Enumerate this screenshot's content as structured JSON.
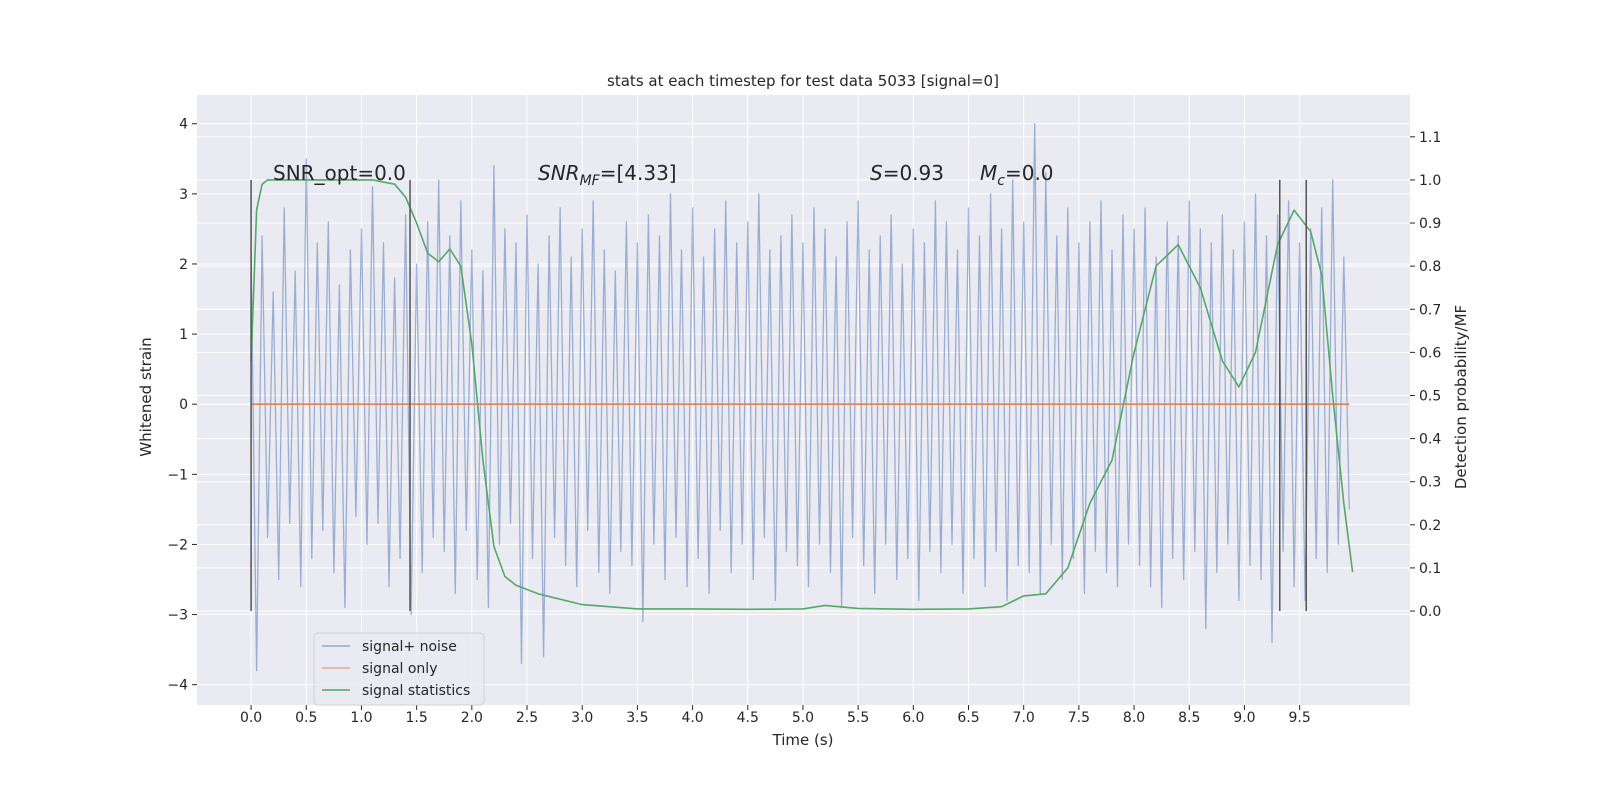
{
  "chart_data": {
    "type": "line",
    "title": "stats at each timestep for test data 5033 [signal=0]",
    "xlabel": "Time (s)",
    "ylabel": "Whitened strain",
    "y2label": "Detection probability/MF",
    "xlim": [
      -0.49,
      10.5
    ],
    "ylim": [
      -4.29,
      4.41
    ],
    "y2lim": [
      -0.218,
      1.197
    ],
    "xticks": [
      {
        "value": 0,
        "label": "0.0"
      },
      {
        "value": 0.5,
        "label": "0.5"
      },
      {
        "value": 1,
        "label": "1.0"
      },
      {
        "value": 1.5,
        "label": "1.5"
      },
      {
        "value": 2,
        "label": "2.0"
      },
      {
        "value": 2.5,
        "label": "2.5"
      },
      {
        "value": 3,
        "label": "3.0"
      },
      {
        "value": 3.5,
        "label": "3.5"
      },
      {
        "value": 4,
        "label": "4.0"
      },
      {
        "value": 4.5,
        "label": "4.5"
      },
      {
        "value": 5,
        "label": "5.0"
      },
      {
        "value": 5.5,
        "label": "5.5"
      },
      {
        "value": 6,
        "label": "6.0"
      },
      {
        "value": 6.5,
        "label": "6.5"
      },
      {
        "value": 7,
        "label": "7.0"
      },
      {
        "value": 7.5,
        "label": "7.5"
      },
      {
        "value": 8,
        "label": "8.0"
      },
      {
        "value": 8.5,
        "label": "8.5"
      },
      {
        "value": 9,
        "label": "9.0"
      },
      {
        "value": 9.5,
        "label": "9.5"
      }
    ],
    "yticks": [
      {
        "value": -4,
        "label": "−4"
      },
      {
        "value": -3,
        "label": "−3"
      },
      {
        "value": -2,
        "label": "−2"
      },
      {
        "value": -1,
        "label": "−1"
      },
      0,
      1,
      2,
      3,
      4
    ],
    "y2ticks": [
      {
        "value": 0,
        "label": "0.0"
      },
      {
        "value": 0.1,
        "label": "0.1"
      },
      {
        "value": 0.2,
        "label": "0.2"
      },
      {
        "value": 0.3,
        "label": "0.3"
      },
      {
        "value": 0.4,
        "label": "0.4"
      },
      {
        "value": 0.5,
        "label": "0.5"
      },
      {
        "value": 0.6,
        "label": "0.6"
      },
      {
        "value": 0.7,
        "label": "0.7"
      },
      {
        "value": 0.8,
        "label": "0.8"
      },
      {
        "value": 0.9,
        "label": "0.9"
      },
      {
        "value": 1.0,
        "label": "1.0"
      },
      {
        "value": 1.1,
        "label": "1.1"
      }
    ],
    "grid": true,
    "legend": "lower left",
    "vlines": [
      0,
      1.44,
      9.32,
      9.56
    ],
    "vline_color": "#555555",
    "annotations": [
      {
        "text": "SNR_opt=0.0"
      },
      {
        "text": "SNR",
        "sub": "MF",
        "rest": "=[4.33]"
      },
      {
        "text": "S",
        "rest": "=0.93"
      },
      {
        "text": "M",
        "sub": "c",
        "rest": "=0.0"
      }
    ],
    "series": [
      {
        "name": "signal+ noise",
        "color": "#4c72b0",
        "x": [
          0,
          0.05,
          0.1,
          0.15,
          0.2,
          0.25,
          0.3,
          0.35,
          0.4,
          0.45,
          0.5,
          0.55,
          0.6,
          0.65,
          0.7,
          0.75,
          0.8,
          0.85,
          0.9,
          0.95,
          1,
          1.05,
          1.1,
          1.15,
          1.2,
          1.25,
          1.3,
          1.35,
          1.4,
          1.45,
          1.5,
          1.55,
          1.6,
          1.65,
          1.7,
          1.75,
          1.8,
          1.85,
          1.9,
          1.95,
          2,
          2.05,
          2.1,
          2.15,
          2.2,
          2.25,
          2.3,
          2.35,
          2.4,
          2.45,
          2.5,
          2.55,
          2.6,
          2.65,
          2.7,
          2.75,
          2.8,
          2.85,
          2.9,
          2.95,
          3,
          3.05,
          3.1,
          3.15,
          3.2,
          3.25,
          3.3,
          3.35,
          3.4,
          3.45,
          3.5,
          3.55,
          3.6,
          3.65,
          3.7,
          3.75,
          3.8,
          3.85,
          3.9,
          3.95,
          4,
          4.05,
          4.1,
          4.15,
          4.2,
          4.25,
          4.3,
          4.35,
          4.4,
          4.45,
          4.5,
          4.55,
          4.6,
          4.65,
          4.7,
          4.75,
          4.8,
          4.85,
          4.9,
          4.95,
          5,
          5.05,
          5.1,
          5.15,
          5.2,
          5.25,
          5.3,
          5.35,
          5.4,
          5.45,
          5.5,
          5.55,
          5.6,
          5.65,
          5.7,
          5.75,
          5.8,
          5.85,
          5.9,
          5.95,
          6,
          6.05,
          6.1,
          6.15,
          6.2,
          6.25,
          6.3,
          6.35,
          6.4,
          6.45,
          6.5,
          6.55,
          6.6,
          6.65,
          6.7,
          6.75,
          6.8,
          6.85,
          6.9,
          6.95,
          7,
          7.05,
          7.1,
          7.15,
          7.2,
          7.25,
          7.3,
          7.35,
          7.4,
          7.45,
          7.5,
          7.55,
          7.6,
          7.65,
          7.7,
          7.75,
          7.8,
          7.85,
          7.9,
          7.95,
          8,
          8.05,
          8.1,
          8.15,
          8.2,
          8.25,
          8.3,
          8.35,
          8.4,
          8.45,
          8.5,
          8.55,
          8.6,
          8.65,
          8.7,
          8.75,
          8.8,
          8.85,
          8.9,
          8.95,
          9,
          9.05,
          9.1,
          9.15,
          9.2,
          9.25,
          9.3,
          9.35,
          9.4,
          9.45,
          9.5,
          9.55,
          9.6,
          9.65,
          9.7,
          9.75,
          9.8,
          9.85,
          9.9,
          9.95
        ],
        "values": [
          2.1,
          -3.8,
          2.4,
          -1.9,
          1.6,
          -2.5,
          2.8,
          -1.7,
          1.9,
          -2.6,
          3.5,
          -2.2,
          2.3,
          -1.8,
          2.6,
          -2.4,
          1.7,
          -2.9,
          2.2,
          -1.6,
          2.5,
          -2.0,
          3.1,
          -1.7,
          2.3,
          -2.6,
          1.8,
          -2.2,
          2.7,
          -3.0,
          2.0,
          -2.4,
          2.6,
          -1.9,
          3.2,
          -2.1,
          2.4,
          -2.7,
          2.9,
          -1.8,
          2.2,
          -2.5,
          1.9,
          -2.9,
          3.4,
          -2.0,
          2.5,
          -1.7,
          2.3,
          -3.7,
          2.7,
          -2.2,
          2.0,
          -3.6,
          2.4,
          -1.9,
          2.8,
          -2.3,
          2.1,
          -2.6,
          2.5,
          -1.8,
          2.9,
          -2.4,
          2.2,
          -2.7,
          1.9,
          -2.1,
          2.6,
          -2.3,
          2.3,
          -3.1,
          2.7,
          -2.0,
          2.4,
          -2.5,
          3.0,
          -1.9,
          2.2,
          -2.6,
          2.8,
          -2.2,
          2.1,
          -2.7,
          2.5,
          -1.8,
          2.9,
          -2.4,
          2.3,
          -2.0,
          2.6,
          -2.5,
          3.0,
          -1.9,
          2.2,
          -2.8,
          2.4,
          -2.1,
          2.7,
          -2.3,
          2.3,
          -2.6,
          2.8,
          -2.0,
          2.5,
          -2.4,
          2.1,
          -2.9,
          2.6,
          -1.9,
          2.9,
          -2.3,
          2.2,
          -2.7,
          2.4,
          -2.0,
          2.7,
          -2.5,
          2.0,
          -2.2,
          2.5,
          -2.8,
          2.3,
          -2.1,
          2.9,
          -2.4,
          2.6,
          -2.0,
          2.2,
          -2.7,
          2.8,
          -2.2,
          2.4,
          -2.6,
          3.0,
          -2.1,
          2.5,
          -2.8,
          3.2,
          -2.3,
          2.6,
          -2.4,
          4.0,
          -2.7,
          3.3,
          -2.0,
          2.4,
          -2.5,
          2.8,
          -2.2,
          2.3,
          -2.7,
          2.6,
          -2.1,
          2.9,
          -2.4,
          2.2,
          -2.6,
          2.7,
          -2.0,
          2.5,
          -2.3,
          2.8,
          -2.6,
          2.1,
          -2.9,
          2.6,
          -2.2,
          2.4,
          -2.5,
          2.9,
          -2.1,
          2.5,
          -3.2,
          2.3,
          -2.4,
          2.7,
          -2.0,
          2.2,
          -2.8,
          2.6,
          -2.3,
          3.0,
          -2.5,
          2.4,
          -3.4,
          2.7,
          -2.1,
          2.9,
          -2.6,
          2.3,
          -2.8,
          2.5,
          -2.2,
          2.8,
          -2.4,
          3.2,
          -2.0,
          2.1,
          -1.5
        ]
      },
      {
        "name": "signal only",
        "color": "#dd8452",
        "x": [
          0,
          9.95
        ],
        "values": [
          0,
          0
        ]
      },
      {
        "name": "signal statistics",
        "color": "#55a868",
        "axis": "y2",
        "x": [
          0,
          0.05,
          0.1,
          0.15,
          0.3,
          0.5,
          0.8,
          1.1,
          1.3,
          1.4,
          1.5,
          1.6,
          1.7,
          1.8,
          1.9,
          2.0,
          2.1,
          2.2,
          2.3,
          2.4,
          2.6,
          3.0,
          3.5,
          4.0,
          4.5,
          5.0,
          5.2,
          5.5,
          6.0,
          6.5,
          6.8,
          7.0,
          7.2,
          7.4,
          7.6,
          7.8,
          8.0,
          8.2,
          8.4,
          8.6,
          8.8,
          8.95,
          9.1,
          9.3,
          9.45,
          9.6,
          9.7,
          9.8,
          9.9,
          9.98
        ],
        "values": [
          0.58,
          0.93,
          0.99,
          1.0,
          1.0,
          1.0,
          1.0,
          1.0,
          0.99,
          0.96,
          0.9,
          0.83,
          0.81,
          0.84,
          0.8,
          0.62,
          0.35,
          0.15,
          0.08,
          0.06,
          0.04,
          0.015,
          0.005,
          0.005,
          0.004,
          0.005,
          0.013,
          0.006,
          0.004,
          0.005,
          0.01,
          0.035,
          0.04,
          0.1,
          0.25,
          0.35,
          0.6,
          0.8,
          0.85,
          0.75,
          0.58,
          0.52,
          0.6,
          0.85,
          0.93,
          0.88,
          0.78,
          0.5,
          0.25,
          0.09
        ]
      }
    ]
  }
}
